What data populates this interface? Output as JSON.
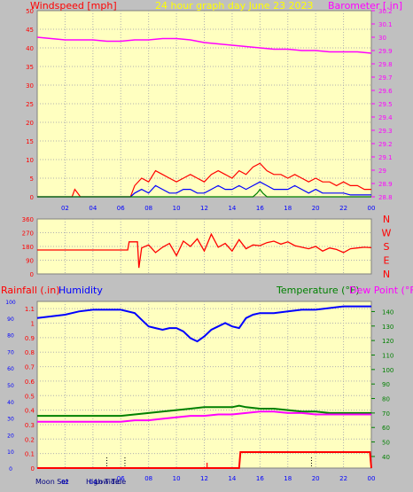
{
  "colors": {
    "background": "#c0c0c0",
    "plot_bg": "#ffffc0",
    "grid": "#b0b0b0",
    "title_yellow": "#ffff00",
    "red": "#ff0000",
    "blue": "#0000ff",
    "magenta": "#ff00ff",
    "green": "#008000",
    "white_tick": "#ffffff"
  },
  "chart_data": [
    {
      "id": "wind-baro",
      "type": "line",
      "title": "24 hour graph day   June 23 2023",
      "ylabel_left": "Windspeed [mph]",
      "ylabel_right": "Barometer [.in]",
      "x_ticks": [
        "02",
        "04",
        "06",
        "08",
        "10",
        "12",
        "14",
        "16",
        "18",
        "20",
        "22",
        "00"
      ],
      "xlim": [
        0,
        24
      ],
      "ylim_left": [
        0,
        50
      ],
      "ylim_right": [
        28.8,
        30.2
      ],
      "left_ticks": [
        0,
        5,
        10,
        15,
        20,
        25,
        30,
        35,
        40,
        45,
        50
      ],
      "right_ticks": [
        "28.8",
        "28.9",
        "29",
        "29.1",
        "29.2",
        "29.3",
        "29.4",
        "29.5",
        "29.6",
        "29.7",
        "29.8",
        "29.9",
        "30",
        "30.1",
        "30.2"
      ],
      "series": [
        {
          "key": "barometer",
          "axis": "right",
          "color": "magenta",
          "x": [
            0,
            1,
            2,
            3,
            4,
            5,
            6,
            7,
            8,
            9,
            10,
            11,
            12,
            13,
            14,
            15,
            16,
            17,
            18,
            19,
            20,
            21,
            22,
            23,
            24
          ],
          "y": [
            30.0,
            29.99,
            29.98,
            29.98,
            29.98,
            29.97,
            29.97,
            29.98,
            29.98,
            29.99,
            29.99,
            29.98,
            29.96,
            29.95,
            29.94,
            29.93,
            29.92,
            29.91,
            29.91,
            29.9,
            29.9,
            29.89,
            29.89,
            29.89,
            29.88
          ]
        },
        {
          "key": "wind_gust",
          "axis": "left",
          "color": "red",
          "x": [
            0,
            2.5,
            2.7,
            2.9,
            3.1,
            6.7,
            7.0,
            7.5,
            8.0,
            8.5,
            9.0,
            9.5,
            10.0,
            10.5,
            11.0,
            11.5,
            12.0,
            12.5,
            13.0,
            13.5,
            14.0,
            14.5,
            15.0,
            15.5,
            16.0,
            16.5,
            17.0,
            17.5,
            18.0,
            18.5,
            19.0,
            19.5,
            20.0,
            20.5,
            21.0,
            21.5,
            22.0,
            22.5,
            23.0,
            23.5,
            24.0
          ],
          "y": [
            0,
            0,
            2,
            1,
            0,
            0,
            3,
            5,
            4,
            7,
            6,
            5,
            4,
            5,
            6,
            5,
            4,
            6,
            7,
            6,
            5,
            7,
            6,
            8,
            9,
            7,
            6,
            6,
            5,
            6,
            5,
            4,
            5,
            4,
            4,
            3,
            4,
            3,
            3,
            2,
            2
          ]
        },
        {
          "key": "wind_avg",
          "axis": "left",
          "color": "blue",
          "x": [
            0,
            6.7,
            7.0,
            7.5,
            8.0,
            8.5,
            9.0,
            9.5,
            10.0,
            10.5,
            11.0,
            11.5,
            12.0,
            12.5,
            13.0,
            13.5,
            14.0,
            14.5,
            15.0,
            15.5,
            16.0,
            16.5,
            17.0,
            17.5,
            18.0,
            18.5,
            19.0,
            19.5,
            20.0,
            20.5,
            21.0,
            21.5,
            22.0,
            22.5,
            23.0,
            23.5,
            24.0
          ],
          "y": [
            0,
            0,
            1,
            2,
            1,
            3,
            2,
            1,
            1,
            2,
            2,
            1,
            1,
            2,
            3,
            2,
            2,
            3,
            2,
            3,
            4,
            3,
            2,
            2,
            2,
            3,
            2,
            1,
            2,
            1,
            1,
            1,
            1,
            0.5,
            0.5,
            0.5,
            0.5
          ]
        },
        {
          "key": "wind_green",
          "axis": "left",
          "color": "green",
          "x": [
            0,
            15.5,
            15.8,
            16.0,
            16.2,
            16.5,
            17.0,
            24.0
          ],
          "y": [
            0,
            0,
            1,
            2,
            1,
            0,
            0,
            0
          ]
        }
      ]
    },
    {
      "id": "direction",
      "type": "line",
      "left_ticks": [
        0,
        90,
        180,
        270,
        360
      ],
      "right_labels": [
        "N",
        "W",
        "S",
        "E",
        "N"
      ],
      "ylim": [
        0,
        360
      ],
      "xlim": [
        0,
        24
      ],
      "series": [
        {
          "key": "wind_dir",
          "color": "red",
          "x": [
            0,
            6.5,
            6.6,
            7.2,
            7.3,
            7.5,
            8.0,
            8.5,
            9.0,
            9.5,
            10.0,
            10.5,
            11.0,
            11.5,
            12.0,
            12.5,
            13.0,
            13.5,
            14.0,
            14.5,
            15.0,
            15.5,
            16.0,
            16.5,
            17.0,
            17.5,
            18.0,
            18.5,
            19.0,
            19.5,
            20.0,
            20.5,
            21.0,
            21.5,
            22.0,
            22.5,
            23.0,
            23.5,
            24.0
          ],
          "y": [
            157,
            157,
            210,
            210,
            40,
            170,
            190,
            140,
            175,
            200,
            120,
            215,
            180,
            230,
            150,
            260,
            175,
            200,
            150,
            225,
            165,
            190,
            185,
            205,
            215,
            195,
            210,
            185,
            175,
            165,
            180,
            150,
            170,
            160,
            140,
            165,
            170,
            175,
            172
          ]
        }
      ]
    },
    {
      "id": "rain-hum-temp",
      "type": "line",
      "ylabel_left_a": "Rainfall (.in)",
      "ylabel_left_b": "Humidity",
      "ylabel_right_a": "Temperature (°F)",
      "ylabel_right_b": "Dew Point (°F)",
      "humidity_ticks": [
        0,
        10,
        20,
        30,
        40,
        50,
        60,
        70,
        80,
        90,
        100
      ],
      "rain_ticks": [
        "0",
        "0.1",
        "0.2",
        "0.3",
        "0.4",
        "0.5",
        "0.6",
        "0.7",
        "0.8",
        "0.9",
        "1",
        "1.1"
      ],
      "temp_ticks": [
        40,
        50,
        60,
        70,
        80,
        90,
        100,
        110,
        120,
        130,
        140
      ],
      "ylim_humidity": [
        0,
        100
      ],
      "ylim_rain": [
        0,
        1.15
      ],
      "ylim_temp": [
        32,
        147
      ],
      "xlim": [
        0,
        24
      ],
      "x_ticks": [
        "02",
        "04",
        "06",
        "08",
        "10",
        "12",
        "14",
        "16",
        "18",
        "20",
        "22",
        "00"
      ],
      "bottom_labels": [
        "Moon Set",
        "High Tide",
        "Low Tide"
      ],
      "series": [
        {
          "key": "humidity",
          "axis": "humidity",
          "color": "blue",
          "x": [
            0,
            1,
            2,
            3,
            4,
            5,
            6,
            7,
            7.5,
            8,
            8.5,
            9,
            9.5,
            10,
            10.5,
            11,
            11.5,
            12,
            12.5,
            13,
            13.5,
            14,
            14.5,
            15,
            15.5,
            16,
            17,
            18,
            19,
            20,
            21,
            22,
            23,
            24
          ],
          "y": [
            90,
            91,
            92,
            94,
            95,
            95,
            95,
            93,
            89,
            85,
            84,
            83,
            84,
            84,
            82,
            78,
            76,
            79,
            83,
            85,
            87,
            85,
            84,
            90,
            92,
            93,
            93,
            94,
            95,
            95,
            96,
            97,
            97,
            97
          ]
        },
        {
          "key": "temperature",
          "axis": "temp",
          "color": "green",
          "x": [
            0,
            2,
            4,
            6,
            7,
            8,
            9,
            10,
            11,
            12,
            13,
            14,
            14.5,
            15,
            16,
            17,
            18,
            19,
            20,
            21,
            22,
            23,
            24
          ],
          "y": [
            68,
            68,
            68,
            68,
            69,
            70,
            71,
            72,
            73,
            74,
            74,
            74,
            75,
            74,
            73,
            73,
            72,
            71,
            71,
            70,
            70,
            70,
            70
          ]
        },
        {
          "key": "dew_point",
          "axis": "temp",
          "color": "magenta",
          "x": [
            0,
            2,
            4,
            6,
            7,
            8,
            9,
            10,
            11,
            12,
            13,
            14,
            15,
            16,
            17,
            18,
            19,
            20,
            21,
            22,
            23,
            24
          ],
          "y": [
            64,
            64,
            64,
            64,
            65,
            65,
            66,
            67,
            68,
            68,
            69,
            69,
            70,
            71,
            71,
            70,
            70,
            69,
            69,
            69,
            69,
            69
          ]
        },
        {
          "key": "rainfall",
          "axis": "rain",
          "color": "red",
          "x": [
            0,
            14.5,
            14.6,
            23.9,
            24.0
          ],
          "y": [
            0,
            0,
            0.11,
            0.11,
            0
          ]
        }
      ]
    }
  ]
}
